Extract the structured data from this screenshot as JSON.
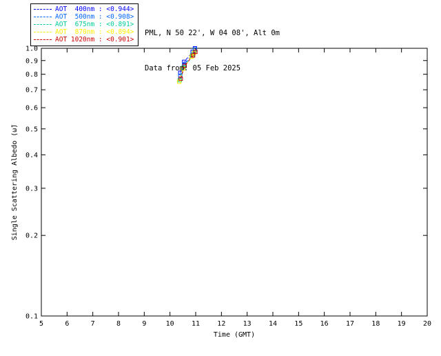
{
  "header": {
    "site": "PML, N 50 22', W 04 08', Alt 0m",
    "date": "Data from: 05 Feb 2025"
  },
  "legend": {
    "entries": [
      {
        "label": "AOT  400nm : <0.944>",
        "color": "#0000ff"
      },
      {
        "label": "AOT  500nm : <0.908>",
        "color": "#0066ff"
      },
      {
        "label": "AOT  675nm : <0.891>",
        "color": "#00cc99"
      },
      {
        "label": "AOT  870nm : <0.894>",
        "color": "#ffee00"
      },
      {
        "label": "AOT 1020nm : <0.901>",
        "color": "#cc0000"
      }
    ]
  },
  "chart_data": {
    "type": "line",
    "title": "",
    "xlabel": "Time (GMT)",
    "ylabel": "Single Scattering Albedo (ω̃)",
    "xlim": [
      5,
      20
    ],
    "ylim": [
      0.1,
      1.0
    ],
    "yscale": "log",
    "grid": false,
    "legend_position": "top-left",
    "xticks": [
      5,
      6,
      7,
      8,
      9,
      10,
      11,
      12,
      13,
      14,
      15,
      16,
      17,
      18,
      19,
      20
    ],
    "yticks": [
      0.1,
      0.2,
      0.3,
      0.4,
      0.5,
      0.6,
      0.7,
      0.8,
      0.9,
      1.0
    ],
    "series": [
      {
        "name": "AOT 400nm",
        "mean": 0.944,
        "color": "#0000ff",
        "x": [
          10.4,
          10.55,
          10.88,
          10.97
        ],
        "y": [
          0.81,
          0.89,
          0.97,
          1.0
        ]
      },
      {
        "name": "AOT 500nm",
        "mean": 0.908,
        "color": "#0066ff",
        "x": [
          10.4,
          10.55,
          10.88,
          10.97
        ],
        "y": [
          0.79,
          0.87,
          0.95,
          0.99
        ]
      },
      {
        "name": "AOT 675nm",
        "mean": 0.891,
        "color": "#00cc99",
        "x": [
          10.38,
          10.53,
          10.86,
          10.95
        ],
        "y": [
          0.76,
          0.85,
          0.94,
          0.97
        ]
      },
      {
        "name": "AOT 870nm",
        "mean": 0.894,
        "color": "#ffee00",
        "x": [
          10.36,
          10.51,
          10.84,
          10.93
        ],
        "y": [
          0.75,
          0.84,
          0.93,
          0.96
        ]
      },
      {
        "name": "AOT 1020nm",
        "mean": 0.901,
        "color": "#cc0000",
        "x": [
          10.42,
          10.57,
          10.9,
          10.99
        ],
        "y": [
          0.77,
          0.86,
          0.94,
          0.97
        ]
      }
    ]
  }
}
